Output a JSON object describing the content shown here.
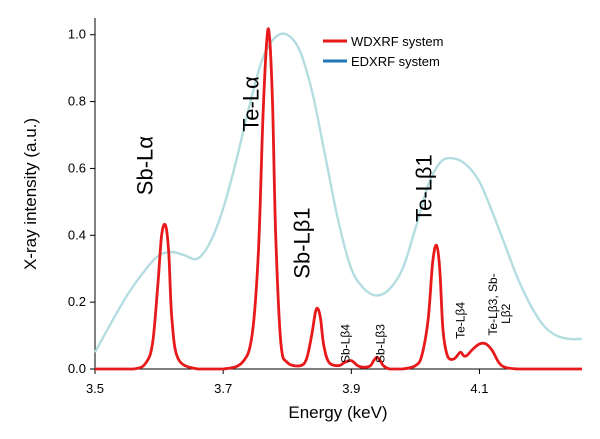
{
  "chart_data": {
    "type": "line",
    "xlabel": "Energy (keV)",
    "ylabel": "X-ray intensity (a.u.)",
    "xlim": [
      3.5,
      4.26
    ],
    "ylim": [
      0.0,
      1.05
    ],
    "x_ticks": [
      3.5,
      3.7,
      3.9,
      4.1
    ],
    "x_tick_labels": [
      "3.5",
      "3.7",
      "3.9",
      "4.1"
    ],
    "y_ticks": [
      0.0,
      0.2,
      0.4,
      0.6,
      0.8,
      1.0
    ],
    "y_tick_labels": [
      "0.0",
      "0.2",
      "0.4",
      "0.6",
      "0.8",
      "1.0"
    ],
    "grid": false,
    "legend_position": "top-right",
    "colors": {
      "wdxrf": "#e8191a",
      "edxrf": "#b3dde0",
      "edxrf_legend": "#1f77b4"
    },
    "series": [
      {
        "name": "WDXRF system",
        "x": [
          3.5,
          3.56,
          3.58,
          3.59,
          3.598,
          3.604,
          3.61,
          3.615,
          3.62,
          3.63,
          3.66,
          3.7,
          3.73,
          3.745,
          3.755,
          3.762,
          3.768,
          3.772,
          3.777,
          3.782,
          3.79,
          3.8,
          3.82,
          3.83,
          3.838,
          3.844,
          3.848,
          3.852,
          3.857,
          3.865,
          3.88,
          3.89,
          3.9,
          3.91,
          3.92,
          3.93,
          3.935,
          3.94,
          3.945,
          3.95,
          3.96,
          3.98,
          4.0,
          4.01,
          4.02,
          4.027,
          4.033,
          4.038,
          4.043,
          4.05,
          4.06,
          4.07,
          4.075,
          4.08,
          4.09,
          4.1,
          4.11,
          4.12,
          4.13,
          4.14,
          4.16,
          4.18,
          4.2,
          4.26
        ],
        "y": [
          0.0,
          0.0,
          0.02,
          0.08,
          0.25,
          0.4,
          0.43,
          0.35,
          0.15,
          0.03,
          0.0,
          0.0,
          0.02,
          0.1,
          0.35,
          0.75,
          0.98,
          1.0,
          0.8,
          0.4,
          0.08,
          0.02,
          0.01,
          0.03,
          0.1,
          0.17,
          0.18,
          0.15,
          0.07,
          0.02,
          0.01,
          0.02,
          0.025,
          0.01,
          0.005,
          0.01,
          0.025,
          0.035,
          0.025,
          0.01,
          0.0,
          0.0,
          0.01,
          0.04,
          0.15,
          0.32,
          0.37,
          0.3,
          0.12,
          0.04,
          0.03,
          0.05,
          0.04,
          0.04,
          0.06,
          0.075,
          0.075,
          0.055,
          0.02,
          0.005,
          0.0,
          0.0,
          0.0,
          0.0
        ]
      },
      {
        "name": "EDXRF system",
        "x": [
          3.5,
          3.52,
          3.55,
          3.58,
          3.6,
          3.62,
          3.64,
          3.66,
          3.68,
          3.7,
          3.72,
          3.74,
          3.76,
          3.78,
          3.8,
          3.82,
          3.84,
          3.86,
          3.88,
          3.9,
          3.92,
          3.94,
          3.96,
          3.98,
          4.0,
          4.02,
          4.04,
          4.06,
          4.08,
          4.1,
          4.12,
          4.14,
          4.16,
          4.18,
          4.2,
          4.22,
          4.24,
          4.26
        ],
        "y": [
          0.05,
          0.12,
          0.22,
          0.3,
          0.34,
          0.35,
          0.34,
          0.33,
          0.38,
          0.48,
          0.62,
          0.78,
          0.92,
          0.99,
          1.0,
          0.95,
          0.82,
          0.63,
          0.44,
          0.3,
          0.24,
          0.22,
          0.24,
          0.3,
          0.42,
          0.55,
          0.62,
          0.63,
          0.61,
          0.56,
          0.47,
          0.37,
          0.27,
          0.19,
          0.13,
          0.1,
          0.09,
          0.09
        ]
      }
    ],
    "annotations": [
      {
        "text": "Sb-Lα",
        "x": 3.59,
        "y": 0.52,
        "size": "big",
        "rotate": -90
      },
      {
        "text": "Te-Lα",
        "x": 3.755,
        "y": 0.71,
        "size": "big",
        "rotate": -90
      },
      {
        "text": "Sb-Lβ1",
        "x": 3.835,
        "y": 0.27,
        "size": "big",
        "rotate": -90
      },
      {
        "text": "Te-Lβ1",
        "x": 4.025,
        "y": 0.44,
        "size": "big",
        "rotate": -90
      },
      {
        "text": "Sb-Lβ4",
        "x": 3.897,
        "y": 0.018,
        "size": "small",
        "rotate": -90
      },
      {
        "text": "Sb-Lβ3",
        "x": 3.952,
        "y": 0.018,
        "size": "small",
        "rotate": -90
      },
      {
        "text": "Te-Lβ4",
        "x": 4.077,
        "y": 0.09,
        "size": "small",
        "rotate": -90
      },
      {
        "text": "Te-Lβ3, Sb-",
        "x": 4.127,
        "y": 0.1,
        "size": "small",
        "rotate": -90
      },
      {
        "text": "Lβ2",
        "x": 4.148,
        "y": 0.135,
        "size": "small",
        "rotate": -90
      }
    ]
  }
}
